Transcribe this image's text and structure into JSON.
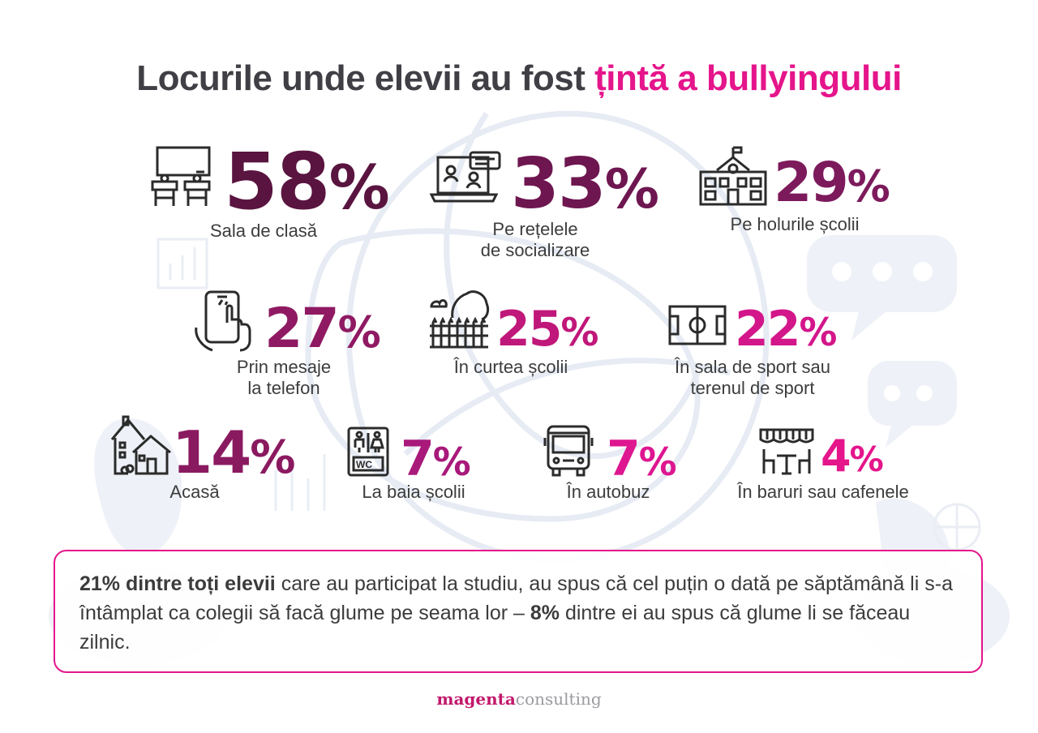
{
  "title": {
    "part1": "Locurile unde elevii au fost ",
    "part2": "țintă a bullyingului"
  },
  "colors": {
    "accent": "#e5158b",
    "dark": "#5a1440",
    "text": "#3c3c3c"
  },
  "stats": [
    {
      "value": "58",
      "sign": "%",
      "label": "Sala de clasă",
      "icon": "classroom-icon",
      "color": "#5a1440"
    },
    {
      "value": "33",
      "sign": "%",
      "label1": "Pe rețelele",
      "label2": "de socializare",
      "icon": "laptop-video-call-icon",
      "color": "#6e1650"
    },
    {
      "value": "29",
      "sign": "%",
      "label": "Pe holurile școlii",
      "icon": "school-building-icon",
      "color": "#7d1a5c"
    },
    {
      "value": "27",
      "sign": "%",
      "label1": "Prin mesaje",
      "label2": "la telefon",
      "icon": "phone-hand-icon",
      "color": "#8f1a63"
    },
    {
      "value": "25",
      "sign": "%",
      "label": "În curtea școlii",
      "icon": "school-yard-icon",
      "color": "#c0177a"
    },
    {
      "value": "22",
      "sign": "%",
      "label1": "În sala de sport sau",
      "label2": "terenul de sport",
      "icon": "sports-field-icon",
      "color": "#d3168a"
    },
    {
      "value": "14",
      "sign": "%",
      "label": "Acasă",
      "icon": "house-icon",
      "color": "#8a1a60"
    },
    {
      "value": "7",
      "sign": "%",
      "label": "La baia școlii",
      "icon": "wc-icon",
      "color": "#a8197a"
    },
    {
      "value": "7",
      "sign": "%",
      "label": "În autobuz",
      "icon": "bus-icon",
      "color": "#de1690"
    },
    {
      "value": "4",
      "sign": "%",
      "label": "În baruri sau cafenele",
      "icon": "cafe-icon",
      "color": "#e5158b"
    }
  ],
  "callout": {
    "bold1": "21% dintre toți elevii",
    "text1": " care au participat la studiu, au spus că cel puțin o dată pe săptămână li s-a întâmplat ca colegii să facă glume pe seama lor – ",
    "bold2": "8%",
    "text2": " dintre ei au spus că glume li se făceau zilnic."
  },
  "footer": {
    "brand1": "magenta",
    "brand2": "consulting"
  }
}
